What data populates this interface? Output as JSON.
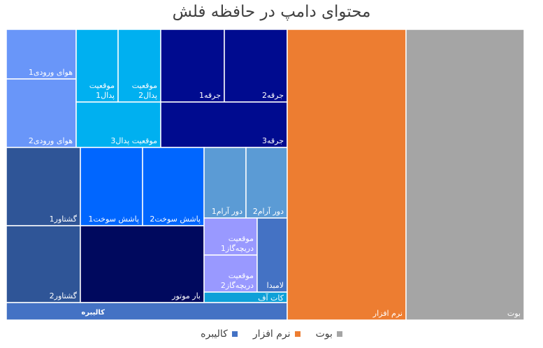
{
  "chart_data": {
    "type": "treemap",
    "title": "محتوای دامپ در حافظه فلش",
    "legend_position": "bottom",
    "groups": [
      {
        "name": "کالیبره",
        "color": "#4472c4",
        "items": [
          {
            "label": "هوای ورودی1",
            "color": "#6996f9"
          },
          {
            "label": "هوای ورودی2",
            "color": "#6996f9"
          },
          {
            "label": "موقعیت پدال1",
            "color": "#00b0f0"
          },
          {
            "label": "موقعیت پدال2",
            "color": "#00b0f0"
          },
          {
            "label": "موقعیت پدال3",
            "color": "#00b0f0"
          },
          {
            "label": "جرقه1",
            "color": "#000b8f"
          },
          {
            "label": "جرقه2",
            "color": "#000b8f"
          },
          {
            "label": "جرقه3",
            "color": "#000b8f"
          },
          {
            "label": "گشتاور1",
            "color": "#2f5597"
          },
          {
            "label": "گشتاور2",
            "color": "#2f5597"
          },
          {
            "label": "پاشش سوخت1",
            "color": "#0066ff"
          },
          {
            "label": "پاشش سوخت2",
            "color": "#0066ff"
          },
          {
            "label": "بار موتور",
            "color": "#00095e"
          },
          {
            "label": "دور آرام1",
            "color": "#5b9bd5"
          },
          {
            "label": "دور آرام2",
            "color": "#5b9bd5"
          },
          {
            "label": "موقعیت دریچه‌گاز1",
            "color": "#9999ff"
          },
          {
            "label": "موقعیت دریچه‌گاز2",
            "color": "#9999ff"
          },
          {
            "label": "لامبدا",
            "color": "#4472c4"
          },
          {
            "label": "کات آف",
            "color": "#0ea0d8"
          }
        ]
      },
      {
        "name": "نرم افزار",
        "color": "#ed7d31",
        "items": [
          {
            "label": "نرم افزار",
            "color": "#ed7d31"
          }
        ]
      },
      {
        "name": "بوت",
        "color": "#a5a5a5",
        "items": [
          {
            "label": "بوت",
            "color": "#a5a5a5"
          }
        ]
      }
    ]
  }
}
